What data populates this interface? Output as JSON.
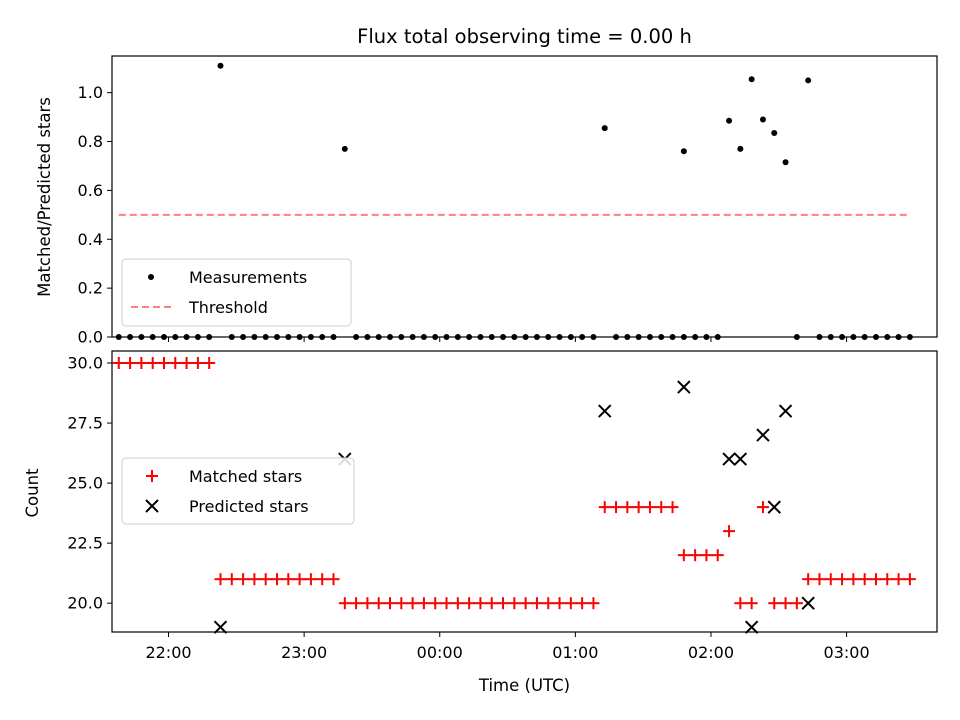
{
  "chart_data": [
    {
      "type": "scatter",
      "title": "Flux total observing time = 0.00 h",
      "ylabel": "Matched/Predicted stars",
      "ylim": [
        0,
        1.15
      ],
      "yticks": [
        "0.0",
        "0.2",
        "0.4",
        "0.6",
        "0.8",
        "1.0"
      ],
      "xlim": [
        "21:35",
        "03:40"
      ],
      "grid": false,
      "legend_position": "lower-left",
      "series": [
        {
          "name": "Measurements",
          "marker": "dot",
          "color": "#000000",
          "points": [
            [
              "21:38",
              0
            ],
            [
              "21:43",
              0
            ],
            [
              "21:48",
              0
            ],
            [
              "21:53",
              0
            ],
            [
              "21:58",
              0
            ],
            [
              "22:03",
              0
            ],
            [
              "22:08",
              0
            ],
            [
              "22:13",
              0
            ],
            [
              "22:18",
              0
            ],
            [
              "22:23",
              1.11
            ],
            [
              "22:28",
              0
            ],
            [
              "22:33",
              0
            ],
            [
              "22:38",
              0
            ],
            [
              "22:43",
              0
            ],
            [
              "22:48",
              0
            ],
            [
              "22:53",
              0
            ],
            [
              "22:58",
              0
            ],
            [
              "23:03",
              0
            ],
            [
              "23:08",
              0
            ],
            [
              "23:13",
              0
            ],
            [
              "23:18",
              0.77
            ],
            [
              "23:23",
              0
            ],
            [
              "23:28",
              0
            ],
            [
              "23:33",
              0
            ],
            [
              "23:38",
              0
            ],
            [
              "23:43",
              0
            ],
            [
              "23:48",
              0
            ],
            [
              "23:53",
              0
            ],
            [
              "23:58",
              0
            ],
            [
              "00:03",
              0
            ],
            [
              "00:08",
              0
            ],
            [
              "00:13",
              0
            ],
            [
              "00:18",
              0
            ],
            [
              "00:23",
              0
            ],
            [
              "00:28",
              0
            ],
            [
              "00:33",
              0
            ],
            [
              "00:38",
              0
            ],
            [
              "00:43",
              0
            ],
            [
              "00:48",
              0
            ],
            [
              "00:53",
              0
            ],
            [
              "00:58",
              0
            ],
            [
              "01:03",
              0
            ],
            [
              "01:08",
              0
            ],
            [
              "01:13",
              0.855
            ],
            [
              "01:18",
              0
            ],
            [
              "01:23",
              0
            ],
            [
              "01:28",
              0
            ],
            [
              "01:33",
              0
            ],
            [
              "01:38",
              0
            ],
            [
              "01:43",
              0
            ],
            [
              "01:48",
              0
            ],
            [
              "01:48",
              0.76
            ],
            [
              "01:53",
              0
            ],
            [
              "01:58",
              0
            ],
            [
              "02:03",
              0
            ],
            [
              "02:08",
              0.885
            ],
            [
              "02:13",
              0.77
            ],
            [
              "02:18",
              1.055
            ],
            [
              "02:23",
              0.89
            ],
            [
              "02:28",
              0.835
            ],
            [
              "02:33",
              0.715
            ],
            [
              "02:38",
              0
            ],
            [
              "02:43",
              1.05
            ],
            [
              "02:48",
              0
            ],
            [
              "02:53",
              0
            ],
            [
              "02:58",
              0
            ],
            [
              "03:03",
              0
            ],
            [
              "03:08",
              0
            ],
            [
              "03:13",
              0
            ],
            [
              "03:18",
              0
            ],
            [
              "03:23",
              0
            ],
            [
              "03:28",
              0
            ]
          ]
        },
        {
          "name": "Threshold",
          "style": "dashed",
          "color": "#ff7f7f",
          "points": [
            [
              "21:38",
              0.5
            ],
            [
              "03:28",
              0.5
            ]
          ]
        }
      ]
    },
    {
      "type": "scatter",
      "title": "",
      "xlabel": "Time (UTC)",
      "ylabel": "Count",
      "ylim": [
        18.8,
        30.5
      ],
      "yticks": [
        "20.0",
        "22.5",
        "25.0",
        "27.5",
        "30.0"
      ],
      "xlim": [
        "21:35",
        "03:40"
      ],
      "xticks": [
        "22:00",
        "23:00",
        "00:00",
        "01:00",
        "02:00",
        "03:00"
      ],
      "grid": false,
      "legend_position": "center-left",
      "series": [
        {
          "name": "Matched stars",
          "marker": "plus",
          "color": "#ff0000",
          "points": [
            [
              "21:38",
              30
            ],
            [
              "21:43",
              30
            ],
            [
              "21:48",
              30
            ],
            [
              "21:53",
              30
            ],
            [
              "21:58",
              30
            ],
            [
              "22:03",
              30
            ],
            [
              "22:08",
              30
            ],
            [
              "22:13",
              30
            ],
            [
              "22:18",
              30
            ],
            [
              "22:23",
              21
            ],
            [
              "22:28",
              21
            ],
            [
              "22:33",
              21
            ],
            [
              "22:38",
              21
            ],
            [
              "22:43",
              21
            ],
            [
              "22:48",
              21
            ],
            [
              "22:53",
              21
            ],
            [
              "22:58",
              21
            ],
            [
              "23:03",
              21
            ],
            [
              "23:08",
              21
            ],
            [
              "23:13",
              21
            ],
            [
              "23:18",
              20
            ],
            [
              "23:23",
              20
            ],
            [
              "23:28",
              20
            ],
            [
              "23:33",
              20
            ],
            [
              "23:38",
              20
            ],
            [
              "23:43",
              20
            ],
            [
              "23:48",
              20
            ],
            [
              "23:53",
              20
            ],
            [
              "23:58",
              20
            ],
            [
              "00:03",
              20
            ],
            [
              "00:08",
              20
            ],
            [
              "00:13",
              20
            ],
            [
              "00:18",
              20
            ],
            [
              "00:23",
              20
            ],
            [
              "00:28",
              20
            ],
            [
              "00:33",
              20
            ],
            [
              "00:38",
              20
            ],
            [
              "00:43",
              20
            ],
            [
              "00:48",
              20
            ],
            [
              "00:53",
              20
            ],
            [
              "00:58",
              20
            ],
            [
              "01:03",
              20
            ],
            [
              "01:08",
              20
            ],
            [
              "01:13",
              24
            ],
            [
              "01:18",
              24
            ],
            [
              "01:23",
              24
            ],
            [
              "01:28",
              24
            ],
            [
              "01:33",
              24
            ],
            [
              "01:38",
              24
            ],
            [
              "01:43",
              24
            ],
            [
              "01:48",
              22
            ],
            [
              "01:53",
              22
            ],
            [
              "01:58",
              22
            ],
            [
              "02:03",
              22
            ],
            [
              "02:08",
              23
            ],
            [
              "02:13",
              20
            ],
            [
              "02:18",
              20
            ],
            [
              "02:23",
              24
            ],
            [
              "02:28",
              20
            ],
            [
              "02:33",
              20
            ],
            [
              "02:38",
              20
            ],
            [
              "02:43",
              21
            ],
            [
              "02:48",
              21
            ],
            [
              "02:53",
              21
            ],
            [
              "02:58",
              21
            ],
            [
              "03:03",
              21
            ],
            [
              "03:08",
              21
            ],
            [
              "03:13",
              21
            ],
            [
              "03:18",
              21
            ],
            [
              "03:23",
              21
            ],
            [
              "03:28",
              21
            ]
          ]
        },
        {
          "name": "Predicted stars",
          "marker": "x",
          "color": "#000000",
          "points": [
            [
              "22:23",
              19
            ],
            [
              "23:18",
              26
            ],
            [
              "01:13",
              28
            ],
            [
              "01:48",
              29
            ],
            [
              "02:08",
              26
            ],
            [
              "02:13",
              26
            ],
            [
              "02:18",
              19
            ],
            [
              "02:23",
              27
            ],
            [
              "02:28",
              24
            ],
            [
              "02:33",
              28
            ],
            [
              "02:43",
              20
            ]
          ]
        }
      ]
    }
  ]
}
